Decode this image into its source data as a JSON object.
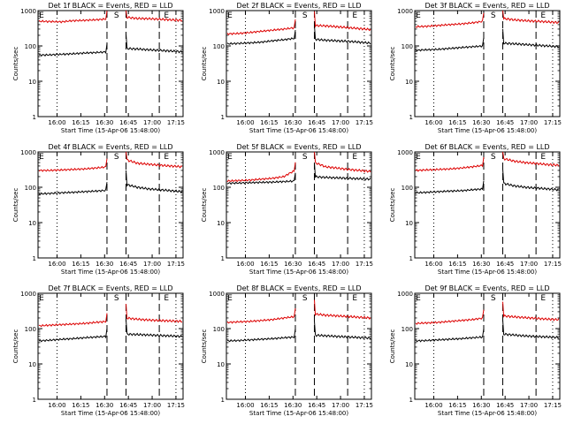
{
  "chart_data": [
    {
      "type": "line",
      "title": "Det 1f BLACK = Events, RED = LLD",
      "xlabel": "Start Time (15-Apr-06 15:48:00)",
      "ylabel": "Counts/sec",
      "yscale": "log",
      "ylim": [
        1,
        1000
      ],
      "xlim_minutes": [
        15.8,
        17.33
      ],
      "x_tick_labels": [
        "16:00",
        "16:15",
        "16:30",
        "16:45",
        "17:00",
        "17:15"
      ],
      "y_tick_labels": [
        "1",
        "10",
        "100",
        "1000"
      ],
      "markers": [
        "E",
        "S",
        "E"
      ],
      "series": [
        {
          "name": "BLACK = Events",
          "color": "#000000",
          "y": [
            55,
            56,
            58,
            60,
            63,
            65,
            68,
            85,
            82,
            78,
            75,
            72,
            68
          ]
        },
        {
          "name": "RED = LLD",
          "color": "#dd0000",
          "y": [
            500,
            490,
            480,
            520,
            530,
            550,
            580,
            650,
            600,
            590,
            570,
            550,
            530
          ]
        }
      ]
    },
    {
      "type": "line",
      "title": "Det 2f BLACK = Events, RED = LLD",
      "xlabel": "Start Time (15-Apr-06 15:48:00)",
      "ylabel": "Counts/sec",
      "yscale": "log",
      "ylim": [
        1,
        1000
      ],
      "x_tick_labels": [
        "16:00",
        "16:15",
        "16:30",
        "16:45",
        "17:00",
        "17:15"
      ],
      "y_tick_labels": [
        "1",
        "10",
        "100",
        "1000"
      ],
      "markers": [
        "E",
        "S",
        "E"
      ],
      "series": [
        {
          "name": "BLACK = Events",
          "color": "#000000",
          "y": [
            115,
            118,
            122,
            128,
            140,
            150,
            165,
            155,
            145,
            140,
            135,
            128,
            120
          ]
        },
        {
          "name": "RED = LLD",
          "color": "#dd0000",
          "y": [
            220,
            225,
            240,
            260,
            280,
            300,
            330,
            380,
            370,
            350,
            330,
            310,
            290
          ]
        }
      ]
    },
    {
      "type": "line",
      "title": "Det 3f BLACK = Events, RED = LLD",
      "xlabel": "Start Time (15-Apr-06 15:48:00)",
      "ylabel": "Counts/sec",
      "yscale": "log",
      "ylim": [
        1,
        1000
      ],
      "x_tick_labels": [
        "16:00",
        "16:15",
        "16:30",
        "16:45",
        "17:00",
        "17:15"
      ],
      "y_tick_labels": [
        "1",
        "10",
        "100",
        "1000"
      ],
      "markers": [
        "E",
        "S",
        "E"
      ],
      "series": [
        {
          "name": "BLACK = Events",
          "color": "#000000",
          "y": [
            75,
            78,
            80,
            85,
            90,
            95,
            100,
            120,
            115,
            110,
            105,
            100,
            95
          ]
        },
        {
          "name": "RED = LLD",
          "color": "#dd0000",
          "y": [
            350,
            360,
            380,
            400,
            420,
            450,
            500,
            600,
            550,
            520,
            500,
            480,
            460
          ]
        }
      ]
    },
    {
      "type": "line",
      "title": "Det 4f BLACK = Events, RED = LLD",
      "xlabel": "Start Time (15-Apr-06 15:48:00)",
      "ylabel": "Counts/sec",
      "yscale": "log",
      "ylim": [
        1,
        1000
      ],
      "x_tick_labels": [
        "16:00",
        "16:15",
        "16:30",
        "16:45",
        "17:00",
        "17:15"
      ],
      "y_tick_labels": [
        "1",
        "10",
        "100",
        "1000"
      ],
      "markers": [
        "E",
        "S",
        "E"
      ],
      "series": [
        {
          "name": "BLACK = Events",
          "color": "#000000",
          "y": [
            65,
            67,
            70,
            72,
            75,
            78,
            82,
            120,
            100,
            90,
            85,
            80,
            75
          ]
        },
        {
          "name": "RED = LLD",
          "color": "#dd0000",
          "y": [
            300,
            300,
            310,
            320,
            330,
            350,
            380,
            600,
            480,
            450,
            420,
            400,
            380
          ]
        }
      ]
    },
    {
      "type": "line",
      "title": "Det 5f BLACK = Events, RED = LLD",
      "xlabel": "Start Time (15-Apr-06 15:48:00)",
      "ylabel": "Counts/sec",
      "yscale": "log",
      "ylim": [
        1,
        1000
      ],
      "x_tick_labels": [
        "16:00",
        "16:15",
        "16:30",
        "16:45",
        "17:00",
        "17:15"
      ],
      "y_tick_labels": [
        "1",
        "10",
        "100",
        "1000"
      ],
      "markers": [
        "E",
        "S",
        "E"
      ],
      "series": [
        {
          "name": "BLACK = Events",
          "color": "#000000",
          "y": [
            130,
            132,
            135,
            138,
            140,
            145,
            150,
            200,
            190,
            185,
            180,
            175,
            170
          ]
        },
        {
          "name": "RED = LLD",
          "color": "#dd0000",
          "y": [
            150,
            155,
            160,
            170,
            180,
            200,
            300,
            500,
            380,
            350,
            320,
            300,
            280
          ]
        }
      ]
    },
    {
      "type": "line",
      "title": "Det 6f BLACK = Events, RED = LLD",
      "xlabel": "Start Time (15-Apr-06 15:48:00)",
      "ylabel": "Counts/sec",
      "yscale": "log",
      "ylim": [
        1,
        1000
      ],
      "x_tick_labels": [
        "16:00",
        "16:15",
        "16:30",
        "16:45",
        "17:00",
        "17:15"
      ],
      "y_tick_labels": [
        "1",
        "10",
        "100",
        "1000"
      ],
      "markers": [
        "E",
        "S",
        "E"
      ],
      "series": [
        {
          "name": "BLACK = Events",
          "color": "#000000",
          "y": [
            70,
            72,
            75,
            78,
            80,
            85,
            90,
            130,
            110,
            100,
            95,
            90,
            85
          ]
        },
        {
          "name": "RED = LLD",
          "color": "#dd0000",
          "y": [
            300,
            310,
            320,
            330,
            350,
            380,
            420,
            650,
            550,
            500,
            470,
            440,
            420
          ]
        }
      ]
    },
    {
      "type": "line",
      "title": "Det 7f BLACK = Events, RED = LLD",
      "xlabel": "Start Time (15-Apr-06 15:48:00)",
      "ylabel": "Counts/sec",
      "yscale": "log",
      "ylim": [
        1,
        1000
      ],
      "x_tick_labels": [
        "16:00",
        "16:15",
        "16:30",
        "16:45",
        "17:00",
        "17:15"
      ],
      "y_tick_labels": [
        "1",
        "10",
        "100",
        "1000"
      ],
      "markers": [
        "E",
        "S",
        "E"
      ],
      "series": [
        {
          "name": "BLACK = Events",
          "color": "#000000",
          "y": [
            45,
            47,
            50,
            52,
            55,
            58,
            60,
            70,
            68,
            66,
            64,
            62,
            60
          ]
        },
        {
          "name": "RED = LLD",
          "color": "#dd0000",
          "y": [
            120,
            125,
            130,
            135,
            140,
            150,
            160,
            200,
            185,
            175,
            170,
            165,
            160
          ]
        }
      ]
    },
    {
      "type": "line",
      "title": "Det 8f BLACK = Events, RED = LLD",
      "xlabel": "Start Time (15-Apr-06 15:48:00)",
      "ylabel": "Counts/sec",
      "yscale": "log",
      "ylim": [
        1,
        1000
      ],
      "x_tick_labels": [
        "16:00",
        "16:15",
        "16:30",
        "16:45",
        "17:00",
        "17:15"
      ],
      "y_tick_labels": [
        "1",
        "10",
        "100",
        "1000"
      ],
      "markers": [
        "E",
        "S",
        "E"
      ],
      "series": [
        {
          "name": "BLACK = Events",
          "color": "#000000",
          "y": [
            45,
            46,
            48,
            50,
            52,
            55,
            58,
            65,
            63,
            60,
            58,
            56,
            54
          ]
        },
        {
          "name": "RED = LLD",
          "color": "#dd0000",
          "y": [
            150,
            155,
            160,
            170,
            180,
            200,
            220,
            260,
            240,
            230,
            220,
            210,
            200
          ]
        }
      ]
    },
    {
      "type": "line",
      "title": "Det 9f BLACK = Events, RED = LLD",
      "xlabel": "Start Time (15-Apr-06 15:48:00)",
      "ylabel": "Counts/sec",
      "yscale": "log",
      "ylim": [
        1,
        1000
      ],
      "x_tick_labels": [
        "16:00",
        "16:15",
        "16:30",
        "16:45",
        "17:00",
        "17:15"
      ],
      "y_tick_labels": [
        "1",
        "10",
        "100",
        "1000"
      ],
      "markers": [
        "E",
        "S",
        "E"
      ],
      "series": [
        {
          "name": "BLACK = Events",
          "color": "#000000",
          "y": [
            45,
            46,
            48,
            50,
            52,
            55,
            58,
            70,
            66,
            62,
            60,
            58,
            56
          ]
        },
        {
          "name": "RED = LLD",
          "color": "#dd0000",
          "y": [
            140,
            145,
            150,
            160,
            170,
            180,
            200,
            230,
            215,
            205,
            195,
            185,
            180
          ]
        }
      ]
    }
  ]
}
